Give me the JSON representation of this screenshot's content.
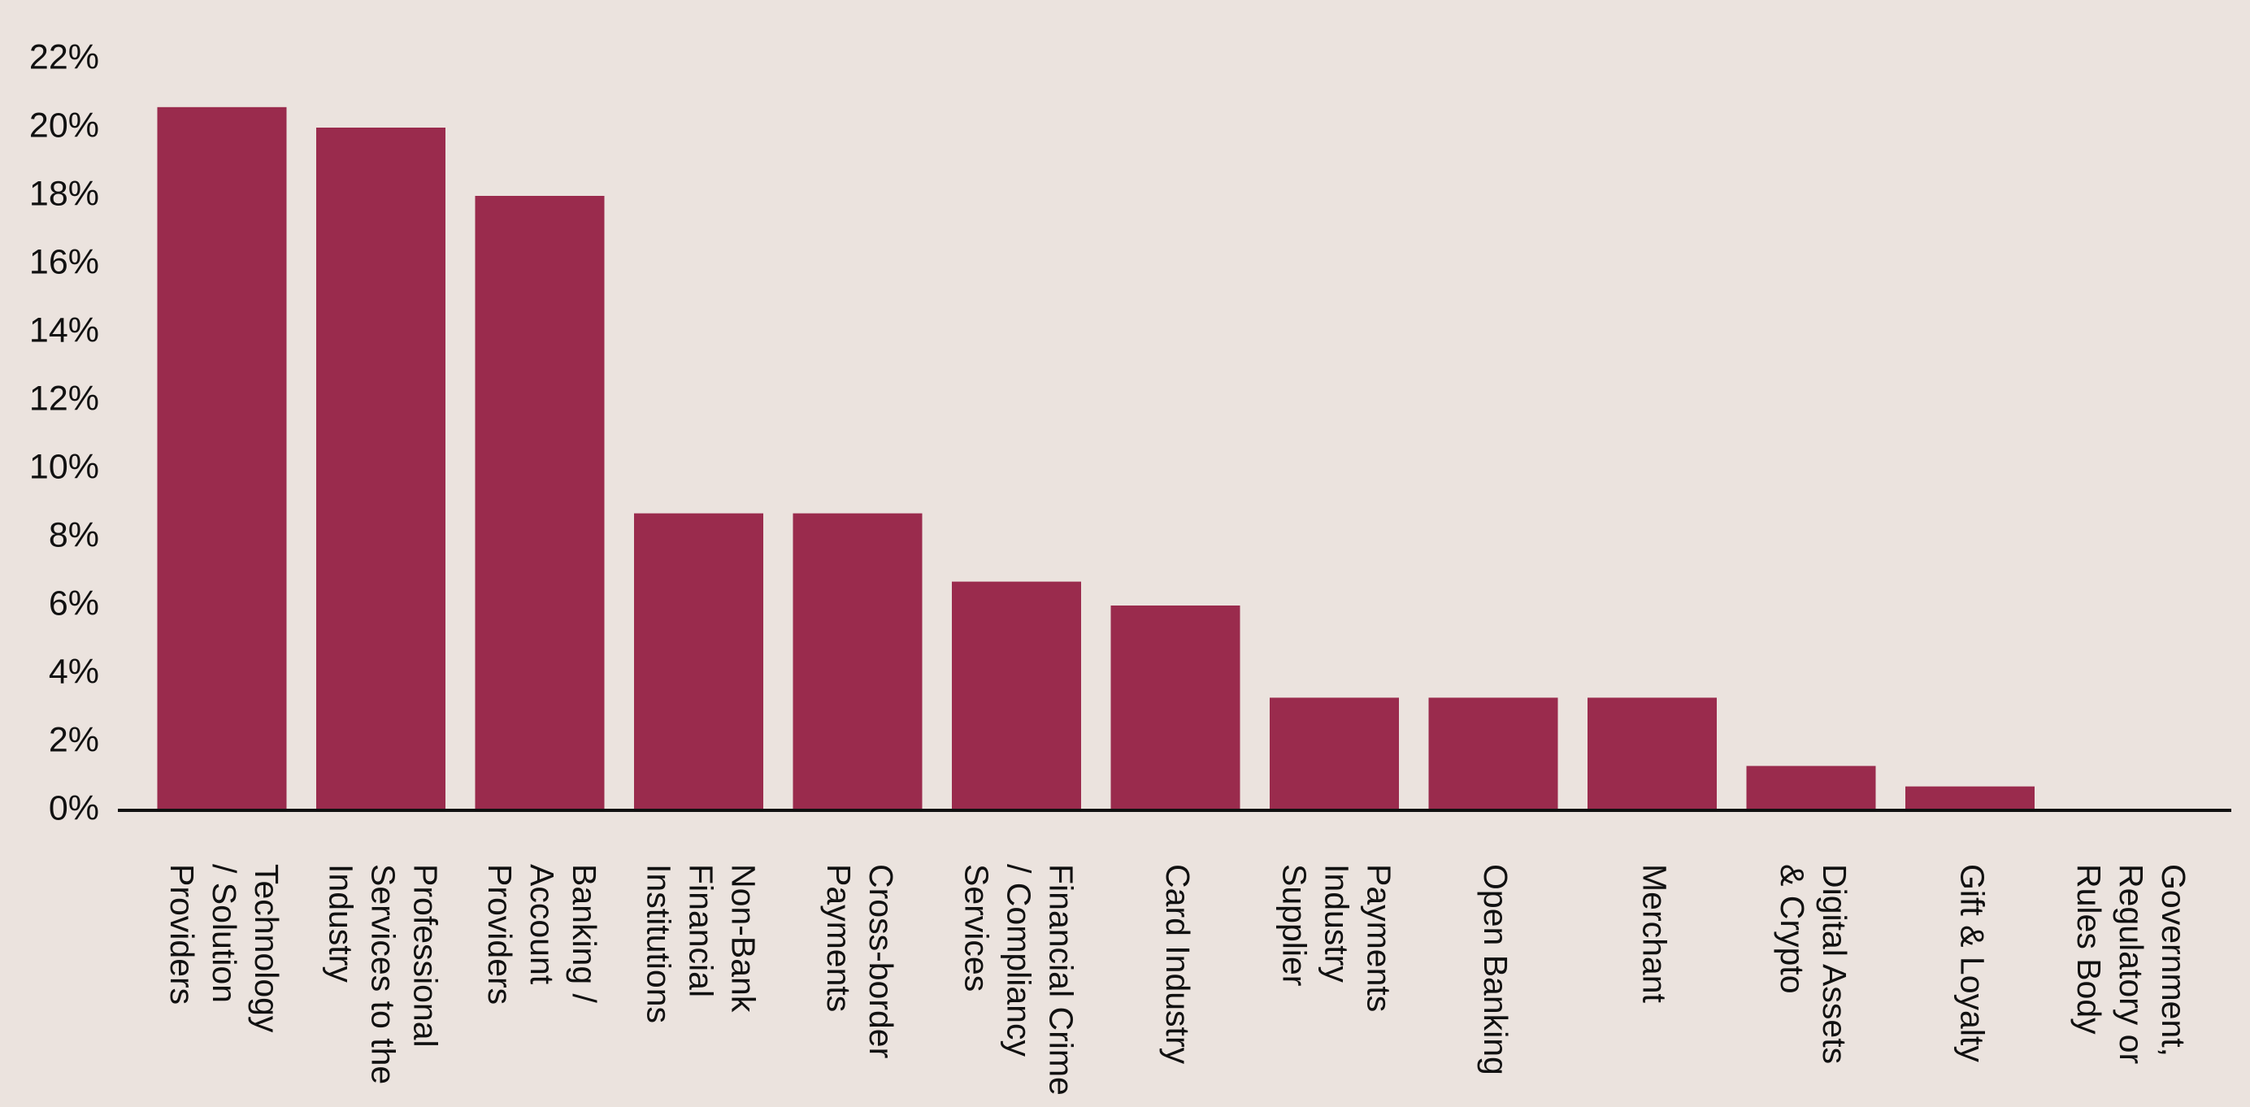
{
  "chart_data": {
    "type": "bar",
    "title": "",
    "xlabel": "",
    "ylabel": "",
    "ylim": [
      0,
      22
    ],
    "y_ticks": [
      0,
      2,
      4,
      6,
      8,
      10,
      12,
      14,
      16,
      18,
      20,
      22
    ],
    "y_tick_format": "percent",
    "grid": false,
    "legend": "none",
    "bar_color": "#9a2b4d",
    "axis_color": "#111111",
    "background_color": "#ebe3de",
    "categories": [
      [
        "Technology",
        "/ Solution",
        "Providers"
      ],
      [
        "Professional",
        "Services to the",
        "Industry"
      ],
      [
        "Banking /",
        "Account",
        "Providers"
      ],
      [
        "Non-Bank",
        "Financial",
        "Institutions"
      ],
      [
        "Cross-border",
        "Payments"
      ],
      [
        "Financial Crime",
        "/ Compliancy",
        "Services"
      ],
      [
        "Card Industry"
      ],
      [
        "Payments",
        "Industry",
        "Supplier"
      ],
      [
        "Open Banking"
      ],
      [
        "Merchant"
      ],
      [
        "Digital Assets",
        "& Crypto"
      ],
      [
        "Gift & Loyalty"
      ],
      [
        "Government,",
        "Regulatory or",
        "Rules Body"
      ]
    ],
    "values": [
      20.6,
      20.0,
      18.0,
      8.7,
      8.7,
      6.7,
      6.0,
      3.3,
      3.3,
      3.3,
      1.3,
      0.7,
      0.0
    ]
  }
}
